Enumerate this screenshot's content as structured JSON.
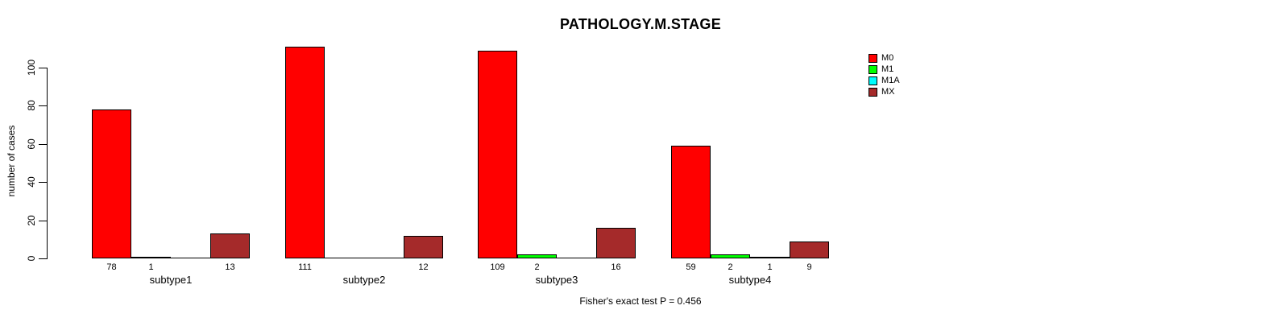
{
  "chart_data": {
    "type": "bar",
    "grouping": "beside",
    "title": "PATHOLOGY.M.STAGE",
    "ylabel": "number of cases",
    "xlabel": "",
    "footer": "Fisher's exact test P = 0.456",
    "categories": [
      "subtype1",
      "subtype2",
      "subtype3",
      "subtype4"
    ],
    "series": [
      {
        "name": "M0",
        "color": "#FF0000",
        "values": [
          78,
          111,
          109,
          59
        ]
      },
      {
        "name": "M1",
        "color": "#00FF00",
        "values": [
          1,
          0,
          2,
          2
        ]
      },
      {
        "name": "M1A",
        "color": "#00FFFF",
        "values": [
          0,
          0,
          0,
          1
        ]
      },
      {
        "name": "MX",
        "color": "#A52A2A",
        "values": [
          13,
          12,
          16,
          9
        ]
      }
    ],
    "bar_value_labels": true,
    "zero_bars_drawn_as_baseline": true,
    "yticks": [
      0,
      20,
      40,
      60,
      80,
      100
    ],
    "ylim": [
      0,
      113
    ],
    "grid": false,
    "legend_position": "top-right",
    "axis_color": "#000000",
    "background_color": "#FFFFFF"
  }
}
